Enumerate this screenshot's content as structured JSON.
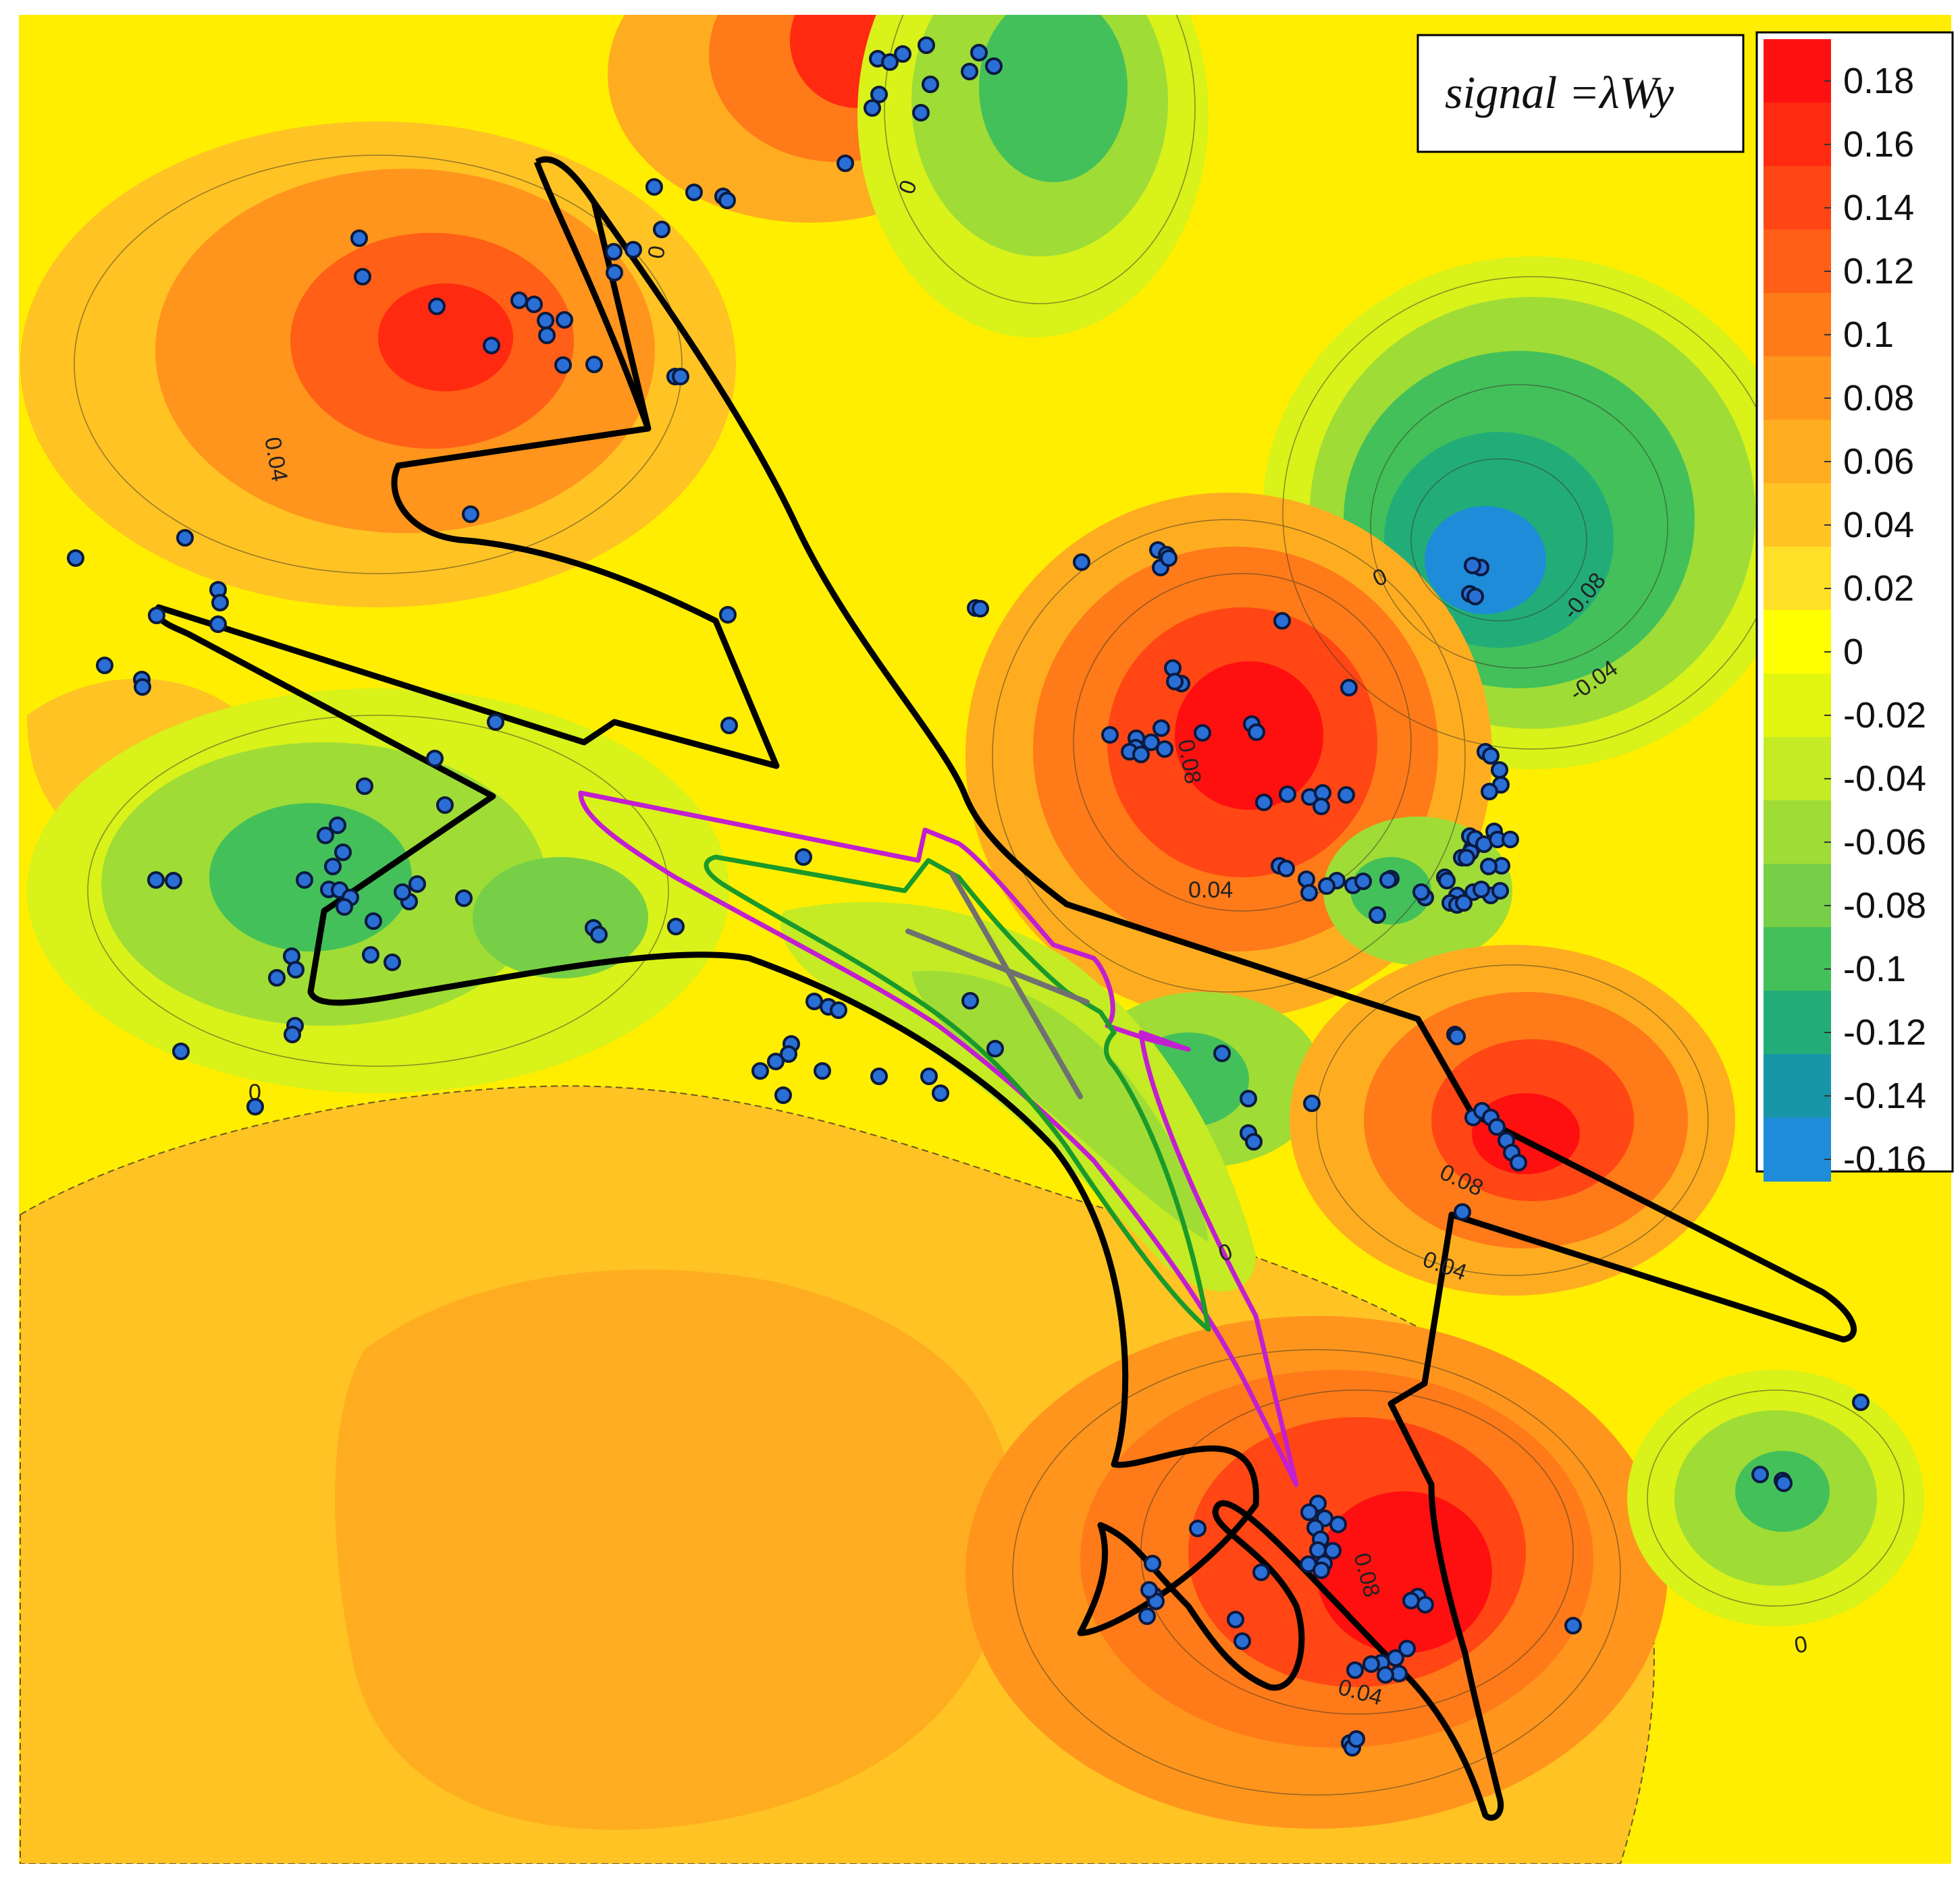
{
  "formula": "signal =λWy",
  "colorbar": {
    "ticks": [
      "0.18",
      "0.16",
      "0.14",
      "0.12",
      "0.1",
      "0.08",
      "0.06",
      "0.04",
      "0.02",
      "0",
      "-0.02",
      "-0.04",
      "-0.06",
      "-0.08",
      "-0.1",
      "-0.12",
      "-0.14",
      "-0.16"
    ],
    "colors": [
      "#ff1010",
      "#ff2a10",
      "#ff4614",
      "#ff5f16",
      "#ff7a18",
      "#ff951c",
      "#ffad20",
      "#ffc324",
      "#ffe028",
      "#ffff00",
      "#e2f50e",
      "#c4eb24",
      "#9fdc36",
      "#76cf46",
      "#43c05a",
      "#22ad78",
      "#1896a8",
      "#1e8cd8"
    ]
  },
  "contour_labels": [
    {
      "id": "label-0-top",
      "text": "0"
    },
    {
      "id": "label-0-top-2",
      "text": "0"
    },
    {
      "id": "label-004-nw",
      "text": "0.04"
    },
    {
      "id": "label-0-ne",
      "text": "0"
    },
    {
      "id": "label-neg008",
      "text": "-0.08"
    },
    {
      "id": "label-neg004",
      "text": "-0.04"
    },
    {
      "id": "label-008-center",
      "text": "0.08"
    },
    {
      "id": "label-004-center",
      "text": "0.04"
    },
    {
      "id": "label-0-west",
      "text": "0"
    },
    {
      "id": "label-008-east",
      "text": "0.08"
    },
    {
      "id": "label-004-east",
      "text": "0.04"
    },
    {
      "id": "label-0-center",
      "text": "0"
    },
    {
      "id": "label-008-south",
      "text": "0.08"
    },
    {
      "id": "label-004-south",
      "text": "0.04"
    },
    {
      "id": "label-0-se",
      "text": "0"
    }
  ],
  "legend": {
    "point_color": "#2a6fd6",
    "point_stroke": "#0b1a40",
    "outline_color": "#000000",
    "inner_magenta": "#c21fd0",
    "inner_green": "#1a9a2a",
    "inner_gray": "#707070"
  }
}
